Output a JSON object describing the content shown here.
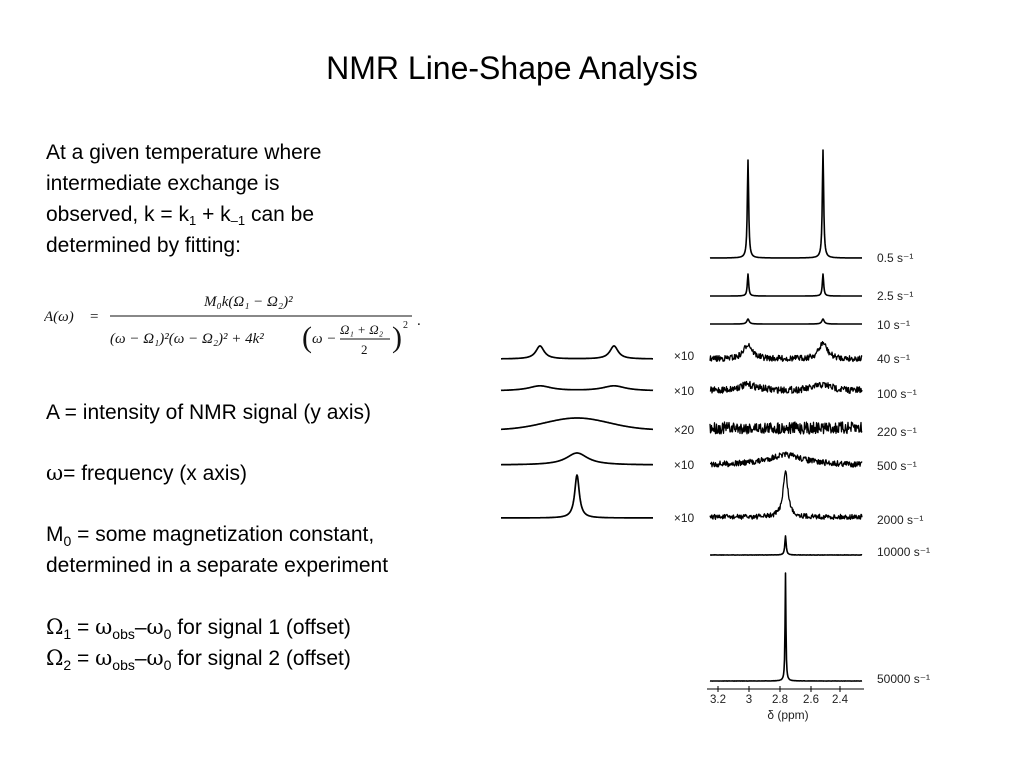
{
  "slide": {
    "title": "NMR Line-Shape Analysis",
    "intro": {
      "line1": "At a given temperature where",
      "line2": "intermediate exchange is",
      "line3_a": "observed, k = k",
      "line3_sub1": "1",
      "line3_b": " + k",
      "line3_sub2": "–1",
      "line3_c": " can be",
      "line4": "determined by fitting:"
    },
    "equation": {
      "lhs": "A(ω)",
      "equals": "=",
      "numerator": "M₀k(Ω₁ − Ω₂)²",
      "denominator_a": "(ω − Ω₁)²(ω − Ω₂)² + 4k²",
      "paren_open": "(",
      "denominator_b": "ω −",
      "frac_top": "Ω₁ + Ω₂",
      "frac_bottom": "2",
      "paren_close": ")",
      "outer_exp": "2",
      "period": "."
    },
    "definitions": {
      "a_def": "A = intensity of NMR signal (y axis)",
      "w_sym": "ω",
      "w_def": "= frequency (x axis)",
      "m_sym": "M",
      "m_sub": "0",
      "m_def": " = some magnetization constant,",
      "m_def2": "determined in a separate experiment",
      "o1_sym": "Ω",
      "o1_sub": "1",
      "o1_eq": " = ",
      "o1_w": "ω",
      "o1_obs": "obs",
      "o1_dash": "–",
      "o1_w0": "ω",
      "o1_0": "0",
      "o1_tail": " for signal 1 (offset)",
      "o2_sym": "Ω",
      "o2_sub": "2",
      "o2_eq": " = ",
      "o2_w": "ω",
      "o2_obs": "obs",
      "o2_dash": "–",
      "o2_w0": "ω",
      "o2_0": "0",
      "o2_tail": " for signal 2 (offset)"
    }
  },
  "figure": {
    "rate_labels": [
      "0.5 s⁻¹",
      "2.5 s⁻¹",
      "10 s⁻¹",
      "40 s⁻¹",
      "100 s⁻¹",
      "220 s⁻¹",
      "500 s⁻¹",
      "2000 s⁻¹",
      "10000 s⁻¹",
      "50000 s⁻¹"
    ],
    "scale_labels": [
      "×10",
      "×10",
      "×20",
      "×10",
      "×10"
    ],
    "axis_ticks": [
      "3.2",
      "3",
      "2.8",
      "2.6",
      "2.4"
    ],
    "axis_label": "δ (ppm)",
    "line_color": "#000000"
  }
}
